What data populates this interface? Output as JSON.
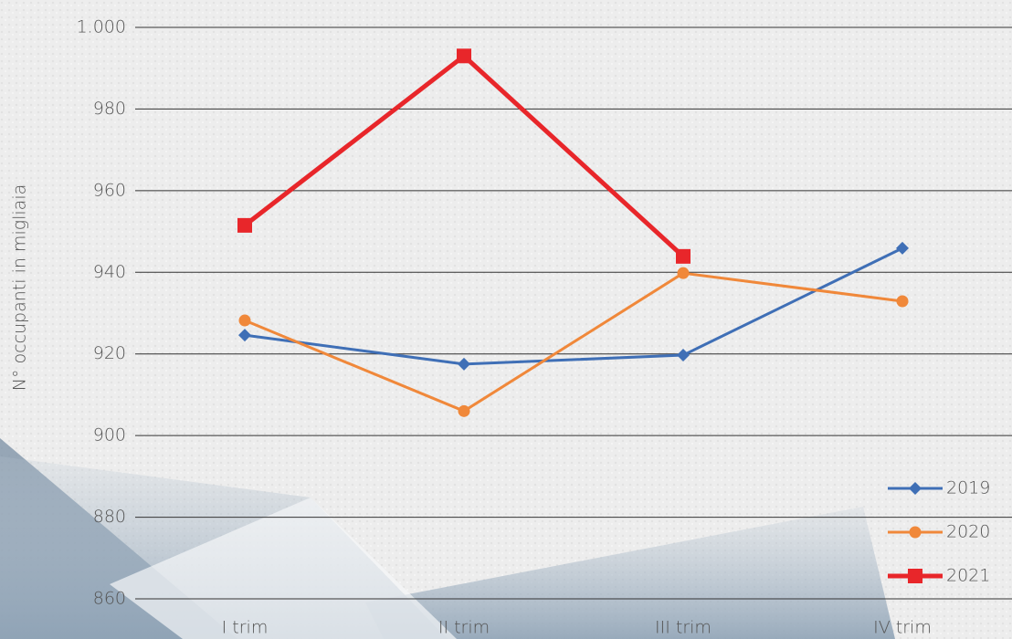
{
  "chart_data": {
    "type": "line",
    "y_label": "N° occupanti in migliaia",
    "categories": [
      "I trim",
      "II trim",
      "III trim",
      "IV trim"
    ],
    "series": [
      {
        "name": "2019",
        "color": "#3f6fb6",
        "marker": "diamond",
        "values": [
          924.6,
          917.5,
          919.7,
          945.9
        ]
      },
      {
        "name": "2020",
        "color": "#f0883a",
        "marker": "circle",
        "values": [
          928.2,
          906,
          939.8,
          932.9
        ]
      },
      {
        "name": "2021",
        "color": "#e8262a",
        "marker": "square",
        "values": [
          951.5,
          993,
          943.9,
          null
        ]
      }
    ],
    "ylim": [
      860,
      1000
    ],
    "yticks": [
      860,
      880,
      900,
      920,
      940,
      960,
      980,
      {
        "value": 1000,
        "label": "1.000"
      }
    ],
    "grid": true,
    "legend": "lower right"
  }
}
